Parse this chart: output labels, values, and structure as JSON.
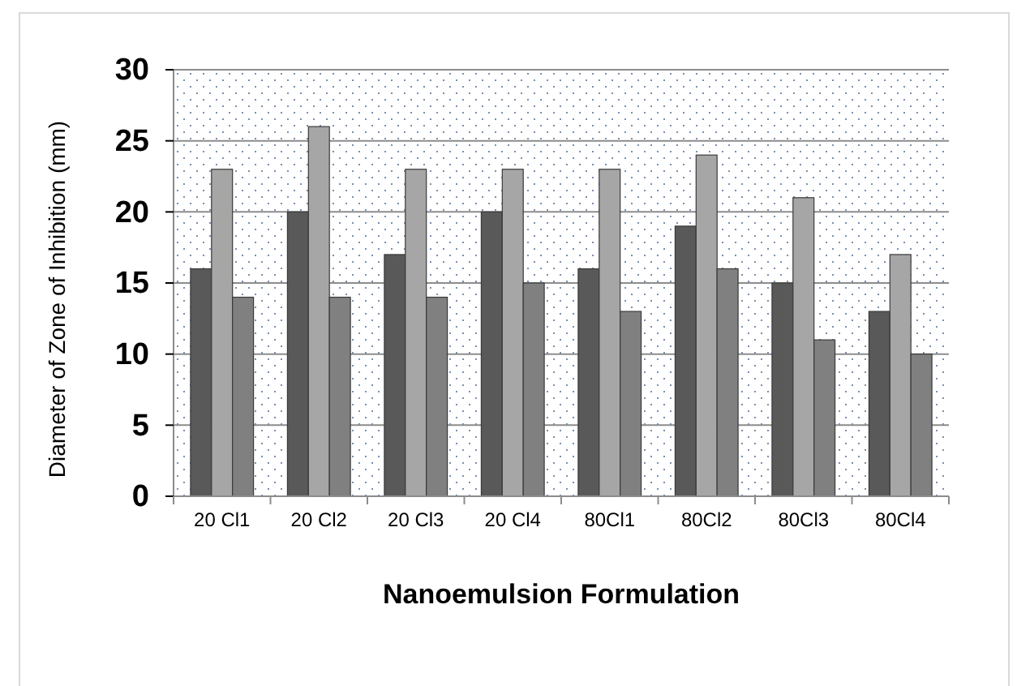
{
  "chart_data": {
    "type": "bar",
    "xlabel": "Nanoemulsion Formulation",
    "ylabel": "Diameter of Zone of Inhibition (mm)",
    "categories": [
      "20 Cl1",
      "20 Cl2",
      "20 Cl3",
      "20 Cl4",
      "80Cl1",
      "80Cl2",
      "80Cl3",
      "80Cl4"
    ],
    "series": [
      {
        "color": "#595959",
        "values": [
          16,
          20,
          17,
          20,
          16,
          19,
          15,
          13
        ]
      },
      {
        "color": "#a6a6a6",
        "values": [
          23,
          26,
          23,
          23,
          23,
          24,
          21,
          17
        ]
      },
      {
        "color": "#808080",
        "values": [
          14,
          14,
          14,
          15,
          13,
          16,
          11,
          10
        ]
      }
    ],
    "ylim": [
      0,
      30
    ],
    "yticks": [
      0,
      5,
      10,
      15,
      20,
      25,
      30
    ],
    "grid": "y"
  }
}
